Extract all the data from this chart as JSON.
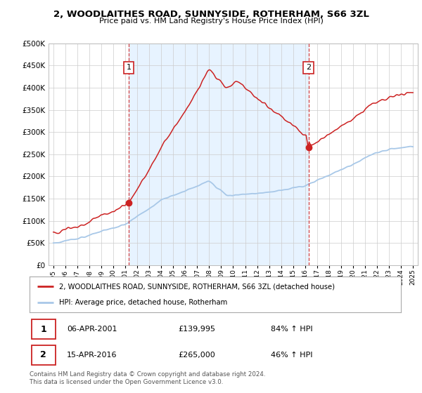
{
  "title": "2, WOODLAITHES ROAD, SUNNYSIDE, ROTHERHAM, S66 3ZL",
  "subtitle": "Price paid vs. HM Land Registry's House Price Index (HPI)",
  "hpi_label": "HPI: Average price, detached house, Rotherham",
  "property_label": "2, WOODLAITHES ROAD, SUNNYSIDE, ROTHERHAM, S66 3ZL (detached house)",
  "sale1_date": "06-APR-2001",
  "sale1_price": 139995,
  "sale1_hpi_pct": "84% ↑ HPI",
  "sale2_date": "15-APR-2016",
  "sale2_price": 265000,
  "sale2_hpi_pct": "46% ↑ HPI",
  "copyright": "Contains HM Land Registry data © Crown copyright and database right 2024.\nThis data is licensed under the Open Government Licence v3.0.",
  "hpi_color": "#a8c8e8",
  "property_color": "#cc2222",
  "sale_marker_color": "#cc2222",
  "shade_color": "#ddeeff",
  "ylim": [
    0,
    500000
  ],
  "yticks": [
    0,
    50000,
    100000,
    150000,
    200000,
    250000,
    300000,
    350000,
    400000,
    450000,
    500000
  ],
  "background_color": "#ffffff",
  "grid_color": "#cccccc",
  "sale1_year": 2001.29,
  "sale2_year": 2016.29
}
